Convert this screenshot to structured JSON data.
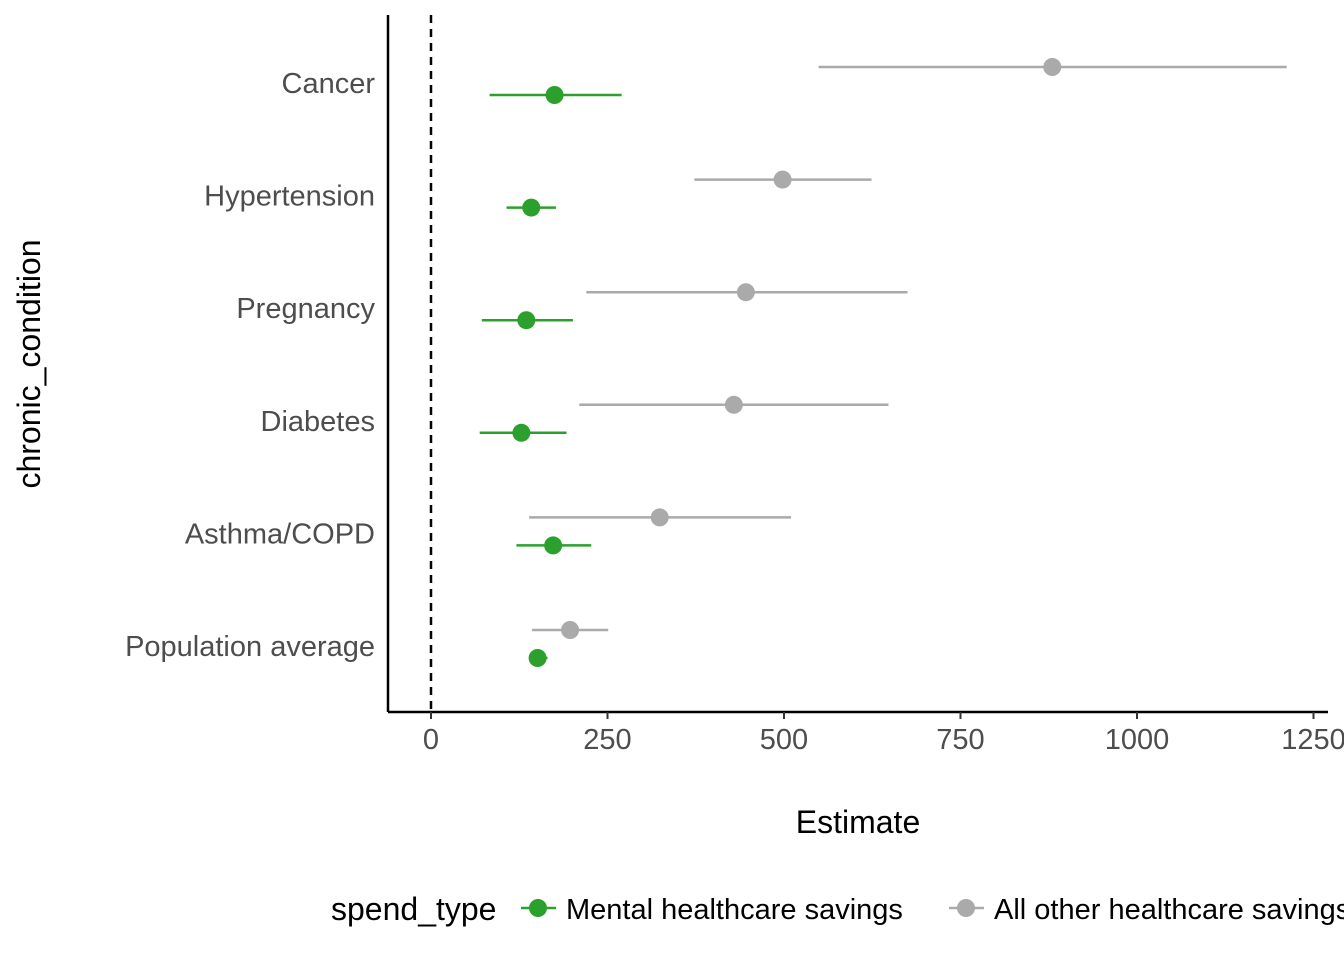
{
  "chart_data": {
    "type": "scatter",
    "subtype": "dot-and-whisker",
    "xlabel": "Estimate",
    "ylabel": "chronic_condition",
    "xlim": [
      -60,
      1275
    ],
    "xticks": [
      0,
      250,
      500,
      750,
      1000,
      1250
    ],
    "reference_line_x": 0,
    "grid": false,
    "legend_position": "bottom",
    "legend_title": "spend_type",
    "categories": [
      "Cancer",
      "Hypertension",
      "Pregnancy",
      "Diabetes",
      "Asthma/COPD",
      "Population average"
    ],
    "series": [
      {
        "name": "Mental healthcare savings",
        "color": "#2ca02c",
        "values": [
          175,
          142,
          135,
          128,
          173,
          151
        ],
        "low": [
          83,
          107,
          72,
          69,
          121,
          140
        ],
        "high": [
          270,
          177,
          201,
          192,
          227,
          165
        ]
      },
      {
        "name": "All other healthcare savings",
        "color": "#aaaaaa",
        "values": [
          880,
          498,
          446,
          429,
          324,
          197
        ],
        "low": [
          549,
          373,
          220,
          210,
          139,
          143
        ],
        "high": [
          1212,
          624,
          675,
          648,
          510,
          251
        ]
      }
    ]
  }
}
